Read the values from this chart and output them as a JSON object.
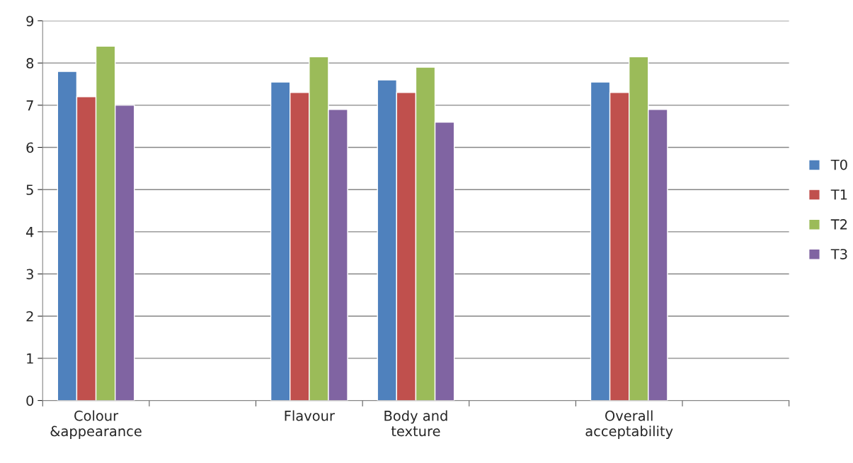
{
  "chart_data": {
    "type": "bar",
    "categories": [
      "Colour\n&appearance",
      null,
      "Flavour",
      "Body and\ntexture",
      null,
      "Overall\nacceptability",
      null
    ],
    "series": [
      {
        "name": "T0",
        "color": "#4f81bd",
        "values": [
          7.8,
          null,
          7.55,
          7.6,
          null,
          7.55,
          null
        ]
      },
      {
        "name": "T1",
        "color": "#c0504d",
        "values": [
          7.2,
          null,
          7.3,
          7.3,
          null,
          7.3,
          null
        ]
      },
      {
        "name": "T2",
        "color": "#9bbb59",
        "values": [
          8.4,
          null,
          8.15,
          7.9,
          null,
          8.15,
          null
        ]
      },
      {
        "name": "T3",
        "color": "#8064a2",
        "values": [
          7.0,
          null,
          6.9,
          6.6,
          null,
          6.9,
          null
        ]
      }
    ],
    "ylim": [
      0,
      9
    ],
    "yticks": [
      0,
      1,
      2,
      3,
      4,
      5,
      6,
      7,
      8,
      9
    ],
    "grid": "y",
    "legend": "right"
  }
}
